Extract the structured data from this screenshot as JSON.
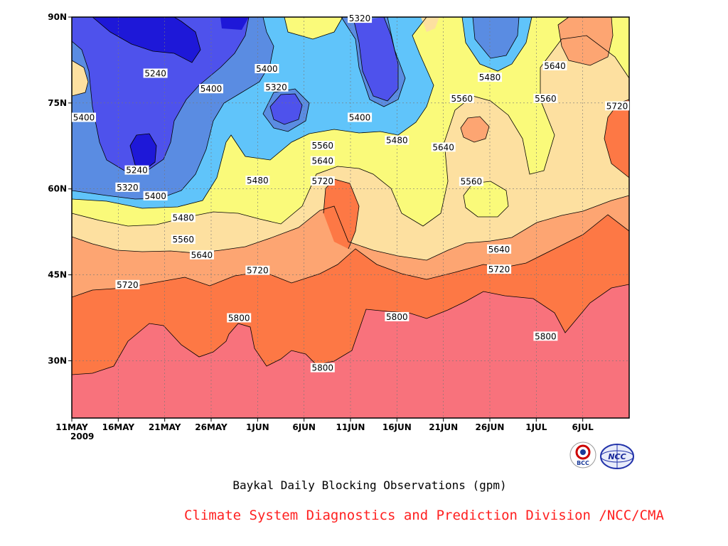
{
  "chart_data": {
    "type": "contour",
    "title": "Baykal Daily Blocking Observations (gpm)",
    "x_ticks": [
      "11MAY",
      "16MAY",
      "21MAY",
      "26MAY",
      "1JUN",
      "6JUN",
      "11JUN",
      "16JUN",
      "21JUN",
      "26JUN",
      "1JUL",
      "6JUL"
    ],
    "x_year": "2009",
    "x_range": [
      "2009-05-11",
      "2009-07-10"
    ],
    "y_ticks": [
      "30N",
      "45N",
      "60N",
      "75N",
      "90N"
    ],
    "y_range": [
      20,
      90
    ],
    "contour_levels": [
      5240,
      5320,
      5400,
      5480,
      5560,
      5640,
      5720,
      5800
    ],
    "contour_labels": [
      {
        "text": "5240",
        "date": "2009-05-20",
        "lat": 80.2
      },
      {
        "text": "5240",
        "date": "2009-05-18",
        "lat": 63.3
      },
      {
        "text": "5320",
        "date": "2009-05-17",
        "lat": 60.3
      },
      {
        "text": "5320",
        "date": "2009-06-02",
        "lat": 77.8
      },
      {
        "text": "5320",
        "date": "2009-06-11",
        "lat": 89.8
      },
      {
        "text": "5400",
        "date": "2009-05-11",
        "lat": 72.5
      },
      {
        "text": "5400",
        "date": "2009-05-20",
        "lat": 58.8
      },
      {
        "text": "5400",
        "date": "2009-05-26",
        "lat": 77.5
      },
      {
        "text": "5400",
        "date": "2009-06-01",
        "lat": 81.0
      },
      {
        "text": "5400",
        "date": "2009-06-11",
        "lat": 72.5
      },
      {
        "text": "5480",
        "date": "2009-05-23",
        "lat": 55.0
      },
      {
        "text": "5480",
        "date": "2009-05-31",
        "lat": 61.5
      },
      {
        "text": "5480",
        "date": "2009-06-15",
        "lat": 68.5
      },
      {
        "text": "5480",
        "date": "2009-06-25",
        "lat": 79.5
      },
      {
        "text": "5560",
        "date": "2009-05-23",
        "lat": 51.2
      },
      {
        "text": "5560",
        "date": "2009-06-07",
        "lat": 67.6
      },
      {
        "text": "5560",
        "date": "2009-06-22",
        "lat": 75.8
      },
      {
        "text": "5560",
        "date": "2009-07-01",
        "lat": 75.8
      },
      {
        "text": "5560",
        "date": "2009-06-23",
        "lat": 61.3
      },
      {
        "text": "5640",
        "date": "2009-05-25",
        "lat": 48.5
      },
      {
        "text": "5640",
        "date": "2009-06-07",
        "lat": 64.9
      },
      {
        "text": "5640",
        "date": "2009-06-20",
        "lat": 67.3
      },
      {
        "text": "5640",
        "date": "2009-06-26",
        "lat": 49.5
      },
      {
        "text": "5640",
        "date": "2009-07-02",
        "lat": 81.5
      },
      {
        "text": "5720",
        "date": "2009-05-17",
        "lat": 43.3
      },
      {
        "text": "5720",
        "date": "2009-05-31",
        "lat": 45.8
      },
      {
        "text": "5720",
        "date": "2009-06-07",
        "lat": 61.4
      },
      {
        "text": "5720",
        "date": "2009-06-26",
        "lat": 46.0
      },
      {
        "text": "5720",
        "date": "2009-07-10",
        "lat": 74.5
      },
      {
        "text": "5800",
        "date": "2009-05-29",
        "lat": 37.5
      },
      {
        "text": "5800",
        "date": "2009-06-07",
        "lat": 28.8
      },
      {
        "text": "5800",
        "date": "2009-06-15",
        "lat": 37.7
      },
      {
        "text": "5800",
        "date": "2009-07-01",
        "lat": 34.3
      }
    ],
    "fill_colors": [
      "#1e18d8",
      "#4e52ec",
      "#5a8ce2",
      "#60c4fa",
      "#fafa7a",
      "#fde0a0",
      "#fda572",
      "#fd7845",
      "#f8727c"
    ],
    "grid": true
  },
  "caption": "Baykal Daily Blocking Observations (gpm)",
  "credit": "Climate System Diagnostics and Prediction Division /NCC/CMA",
  "logos": {
    "bcc_text": "BCC",
    "ncc_text": "NCC"
  }
}
